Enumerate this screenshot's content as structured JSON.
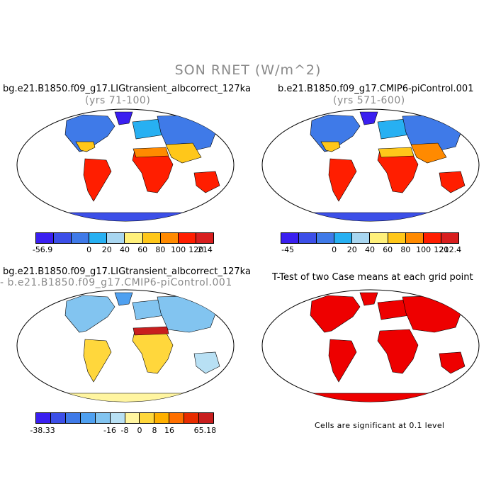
{
  "title": "SON RNET (W/m^2)",
  "panels": [
    {
      "title": "bg.e21.B1850.f09_g17.LIGtransient_albcorrect_127ka",
      "subtitle": "(yrs 71-100)",
      "colorbar": {
        "colors": [
          "#3a1ff0",
          "#3c4fe8",
          "#3f7ae8",
          "#27b0f2",
          "#a8d6f0",
          "#fff07a",
          "#ffc71a",
          "#ff8a00",
          "#ff1e00",
          "#d81e1e"
        ],
        "labels": [
          "-56.9",
          "0",
          "20",
          "40",
          "60",
          "80",
          "100",
          "120",
          "214"
        ]
      }
    },
    {
      "title": "b.e21.B1850.f09_g17.CMIP6-piControl.001",
      "subtitle": "(yrs 571-600)",
      "colorbar": {
        "colors": [
          "#3a1ff0",
          "#3c4fe8",
          "#3f7ae8",
          "#27b0f2",
          "#a8d6f0",
          "#fff07a",
          "#ffc71a",
          "#ff8a00",
          "#ff1e00",
          "#d81e1e"
        ],
        "labels": [
          "-45",
          "0",
          "20",
          "40",
          "60",
          "80",
          "100",
          "120",
          "212.4"
        ]
      }
    },
    {
      "title": "bg.e21.B1850.f09_g17.LIGtransient_albcorrect_127ka",
      "subtitle": "- b.e21.B1850.f09_g17.CMIP6-piControl.001",
      "colorbar": {
        "colors": [
          "#3a1ff0",
          "#3c4fe8",
          "#3f7ae8",
          "#4fa0f0",
          "#82c4f0",
          "#b8e0f4",
          "#fff5a0",
          "#ffd73c",
          "#ffb000",
          "#ff7000",
          "#e82c00",
          "#c81e1e"
        ],
        "labels": [
          "-38.33",
          "-16",
          "-8",
          "0",
          "8",
          "16",
          "65.18"
        ]
      }
    },
    {
      "title": "T-Test of two Case means at each grid point",
      "note": "Cells are significant at 0.1 level"
    }
  ],
  "colors": {
    "significant": "#ee0000",
    "title_gray": "#8a8a8a"
  }
}
